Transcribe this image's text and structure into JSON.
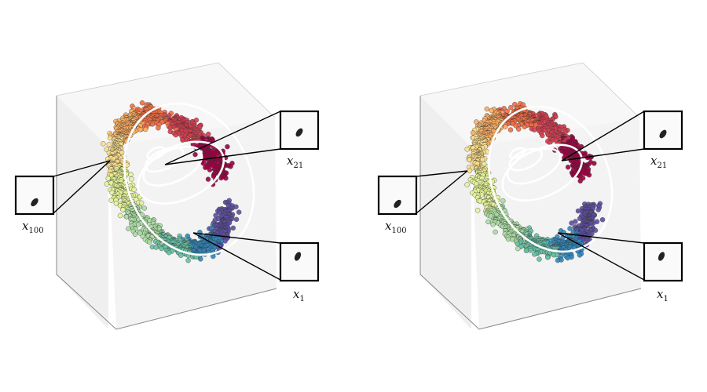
{
  "panels": [
    {
      "id": "left",
      "insets": [
        {
          "var": "x",
          "sub": "21",
          "blob_angle": -35
        },
        {
          "var": "x",
          "sub": "100",
          "blob_angle": -40
        },
        {
          "var": "x",
          "sub": "1",
          "blob_angle": -55
        }
      ]
    },
    {
      "id": "right",
      "insets": [
        {
          "var": "x",
          "sub": "21",
          "blob_angle": -35
        },
        {
          "var": "x",
          "sub": "100",
          "blob_angle": -40
        },
        {
          "var": "x",
          "sub": "1",
          "blob_angle": -55
        }
      ]
    }
  ],
  "colors": {
    "box_face": "#f4f4f4",
    "box_edge": "#777777",
    "contour": "#ffffff",
    "connector": "#000000",
    "colormap": [
      "#9e0142",
      "#d53e4f",
      "#f46d43",
      "#fdae61",
      "#fee08b",
      "#e6f598",
      "#abdda4",
      "#66c2a5",
      "#3288bd",
      "#5e4fa2"
    ]
  }
}
